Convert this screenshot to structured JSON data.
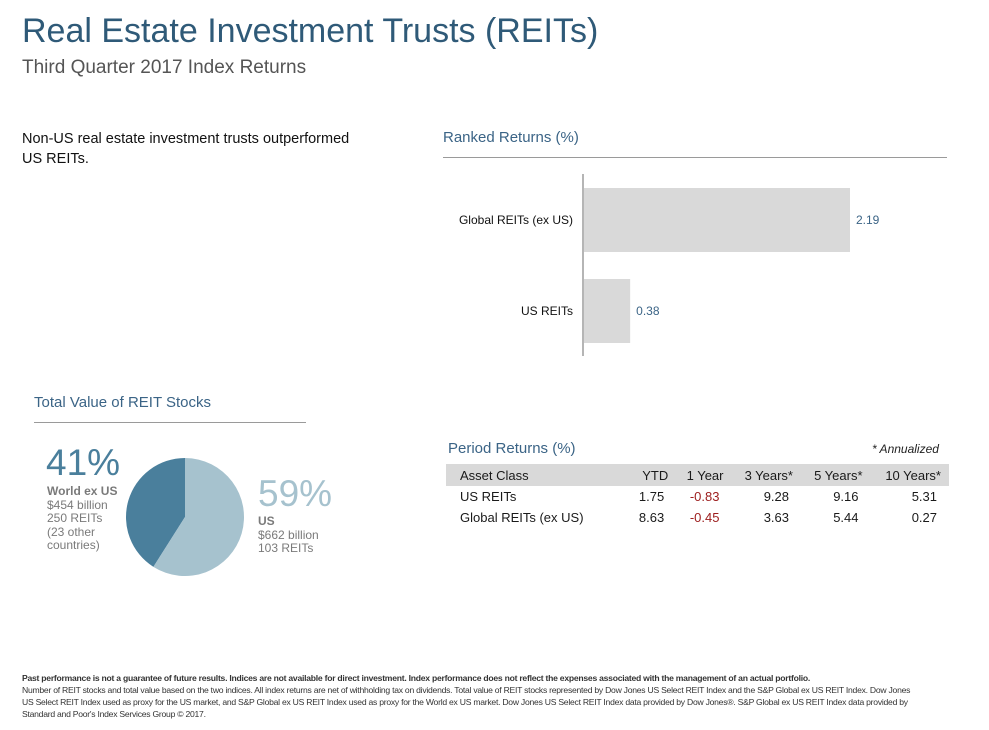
{
  "header": {
    "title": "Real Estate Investment Trusts (REITs)",
    "subtitle": "Third Quarter 2017 Index Returns"
  },
  "intro_text": "Non-US real estate investment trusts outperformed US REITs.",
  "ranked": {
    "title": "Ranked Returns (%)"
  },
  "pie": {
    "title": "Total Value of REIT Stocks",
    "colors": {
      "world": "#4a7f9c",
      "us": "#a6c2ce"
    },
    "world": {
      "pct": "41%",
      "name": "World ex US",
      "value": "$454 billion",
      "count": "250 REITs",
      "note": "(23 other countries)"
    },
    "us": {
      "pct": "59%",
      "name": "US",
      "value": "$662 billion",
      "count": "103 REITs"
    }
  },
  "period": {
    "title": "Period Returns (%)",
    "annotation": "* Annualized",
    "headers": [
      "Asset Class",
      "YTD",
      "1 Year",
      "3 Years*",
      "5 Years*",
      "10 Years*"
    ],
    "rows": [
      [
        "US REITs",
        "1.75",
        "-0.83",
        "9.28",
        "9.16",
        "5.31"
      ],
      [
        "Global REITs (ex US)",
        "8.63",
        "-0.45",
        "3.63",
        "5.44",
        "0.27"
      ]
    ]
  },
  "footer": {
    "line1": "Past performance is not a guarantee of future results. Indices are not available for direct investment. Index performance does not reflect the expenses associated with the management of an actual portfolio.",
    "line2": "Number of REIT stocks and total value based on the two indices. All index returns are net of withholding tax on dividends. Total value of REIT stocks represented by Dow Jones US Select REIT Index and the S&P Global ex US REIT Index. Dow Jones US Select REIT Index used as proxy for the US market, and S&P Global ex US REIT Index used as proxy for the World ex US market. Dow Jones US Select REIT Index data provided by Dow Jones®. S&P Global ex US REIT Index data provided by Standard and Poor's Index Services Group © 2017."
  },
  "chart_data": [
    {
      "type": "bar",
      "orientation": "horizontal",
      "title": "Ranked Returns (%)",
      "categories": [
        "Global REITs (ex US)",
        "US REITs"
      ],
      "values": [
        2.19,
        0.38
      ],
      "data_labels": [
        "2.19",
        "0.38"
      ],
      "bar_color": "#d9d9d9",
      "label_color": "#3b6486",
      "xlim": [
        0,
        2.5
      ],
      "grid": false
    },
    {
      "type": "pie",
      "title": "Total Value of REIT Stocks",
      "categories": [
        "World ex US",
        "US"
      ],
      "values": [
        41,
        59
      ],
      "amounts_billion": [
        454,
        662
      ],
      "colors": [
        "#4a7f9c",
        "#a6c2ce"
      ]
    }
  ]
}
